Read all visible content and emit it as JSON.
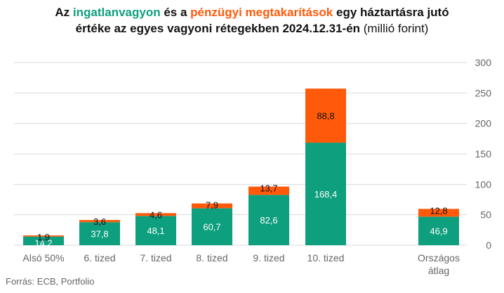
{
  "title": {
    "part1": "Az ",
    "highlight1": "ingatlanvagyon",
    "part2": " és a ",
    "highlight2": "pénzügyi megtakarítások",
    "part3": " egy háztartásra jutó",
    "line2": "értéke az egyes vagyoni rétegekben 2024.12.31-én",
    "line2_unit": " (millió forint)"
  },
  "source": "Forrás: ECB, Portfolio",
  "colors": {
    "real_estate": "#0E9F7E",
    "financial": "#FF5A0A",
    "grid": "#D9D9D9",
    "axis_text": "#666666"
  },
  "chart_data": {
    "type": "bar",
    "stacked": true,
    "categories": [
      "Alsó 50%",
      "6. tized",
      "7. tized",
      "8. tized",
      "9. tized",
      "10. tized",
      "Országos\nátlag"
    ],
    "series": [
      {
        "name": "ingatlanvagyon",
        "values": [
          14.2,
          37.8,
          48.1,
          60.7,
          82.6,
          168.4,
          46.9
        ],
        "labels": [
          "14,2",
          "37,8",
          "48,1",
          "60,7",
          "82,6",
          "168,4",
          "46,9"
        ]
      },
      {
        "name": "pénzügyi megtakarítások",
        "values": [
          1.9,
          3.6,
          4.6,
          7.9,
          13.7,
          88.8,
          12.8
        ],
        "labels": [
          "1,9",
          "3,6",
          "4,6",
          "7,9",
          "13,7",
          "88,8",
          "12,8"
        ]
      }
    ],
    "ylim": [
      0,
      300
    ],
    "yticks": [
      0,
      50,
      100,
      150,
      200,
      250,
      300
    ],
    "y_axis_position": "right",
    "grid": true,
    "legend": "none (series named in title colors)"
  }
}
